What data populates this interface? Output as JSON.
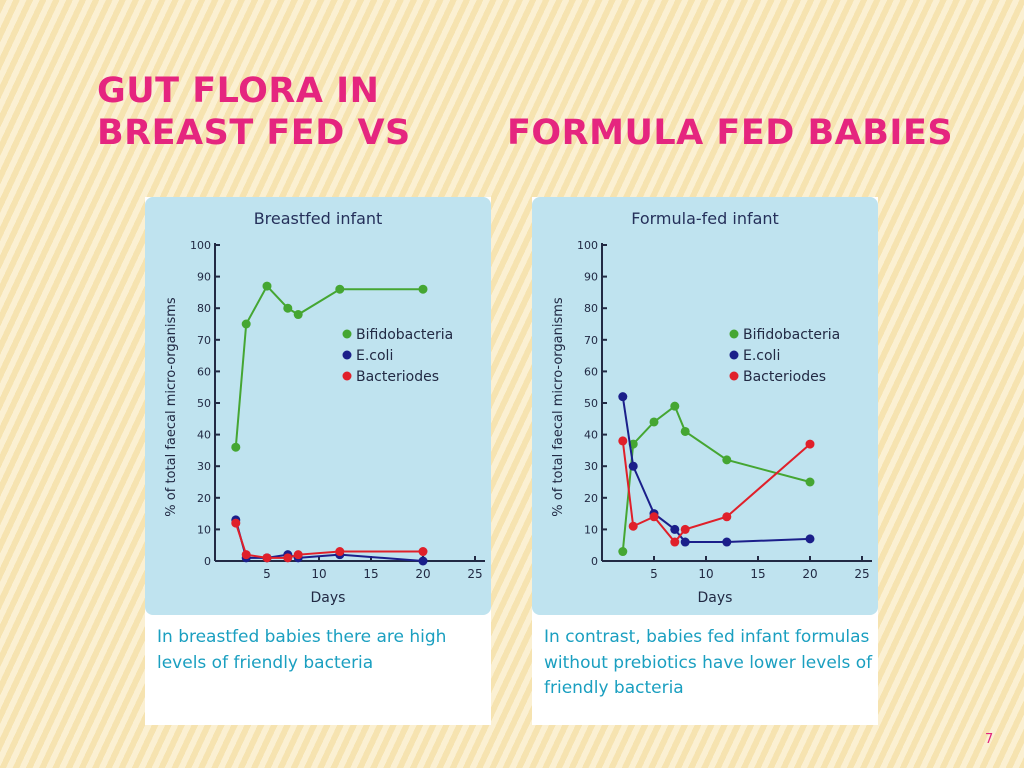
{
  "slide": {
    "title_line1": "GUT FLORA IN",
    "title_line2_left": "BREAST FED VS",
    "title_line2_right": "FORMULA FED BABIES",
    "page_number": "7"
  },
  "colors": {
    "bifidobacteria": "#45a632",
    "ecoli": "#1b1f8a",
    "bacteriodes": "#e0202a",
    "title_pink": "#e5257f",
    "caption_blue": "#1a9fc0",
    "chart_bg": "#bfe3ef"
  },
  "captions": {
    "left": "In breastfed babies there are high levels of friendly bacteria",
    "right": "In contrast, babies fed infant formulas without prebiotics have lower levels of friendly bacteria"
  },
  "chart_data": [
    {
      "type": "line",
      "title": "Breastfed infant",
      "xlabel": "Days",
      "ylabel": "% of total faecal micro-organisms",
      "xlim": [
        0,
        25
      ],
      "ylim": [
        0,
        100
      ],
      "xticks": [
        5,
        10,
        15,
        20,
        25
      ],
      "yticks": [
        0,
        10,
        20,
        30,
        40,
        50,
        60,
        70,
        80,
        90,
        100
      ],
      "legend_position": "right",
      "series": [
        {
          "name": "Bifidobacteria",
          "color": "#45a632",
          "x": [
            2,
            3,
            5,
            7,
            8,
            12,
            20
          ],
          "y": [
            36,
            75,
            87,
            80,
            78,
            86,
            86
          ]
        },
        {
          "name": "E.coli",
          "color": "#1b1f8a",
          "x": [
            2,
            3,
            5,
            7,
            8,
            12,
            20
          ],
          "y": [
            13,
            1,
            1,
            2,
            1,
            2,
            0
          ]
        },
        {
          "name": "Bacteriodes",
          "color": "#e0202a",
          "x": [
            2,
            3,
            5,
            7,
            8,
            12,
            20
          ],
          "y": [
            12,
            2,
            1,
            1,
            2,
            3,
            3
          ]
        }
      ]
    },
    {
      "type": "line",
      "title": "Formula-fed infant",
      "xlabel": "Days",
      "ylabel": "% of total faecal micro-organisms",
      "xlim": [
        0,
        25
      ],
      "ylim": [
        0,
        100
      ],
      "xticks": [
        5,
        10,
        15,
        20,
        25
      ],
      "yticks": [
        0,
        10,
        20,
        30,
        40,
        50,
        60,
        70,
        80,
        90,
        100
      ],
      "legend_position": "right",
      "series": [
        {
          "name": "Bifidobacteria",
          "color": "#45a632",
          "x": [
            2,
            3,
            5,
            7,
            8,
            12,
            20
          ],
          "y": [
            3,
            37,
            44,
            49,
            41,
            32,
            25
          ]
        },
        {
          "name": "E.coli",
          "color": "#1b1f8a",
          "x": [
            2,
            3,
            5,
            7,
            8,
            12,
            20
          ],
          "y": [
            52,
            30,
            15,
            10,
            6,
            6,
            7
          ]
        },
        {
          "name": "Bacteriodes",
          "color": "#e0202a",
          "x": [
            2,
            3,
            5,
            7,
            8,
            12,
            20
          ],
          "y": [
            38,
            11,
            14,
            6,
            10,
            14,
            37
          ]
        }
      ]
    }
  ]
}
